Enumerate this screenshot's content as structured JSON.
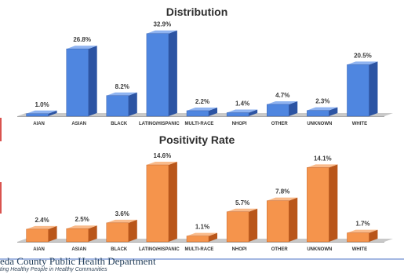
{
  "footer": {
    "department": "eda County Public Health Department",
    "tagline": "ting Healthy People in Healthy Communities"
  },
  "colors": {
    "distribution_front": "#4f86e0",
    "distribution_side": "#2c54a3",
    "distribution_top": "#8fb3f0",
    "positivity_front": "#f5944c",
    "positivity_side": "#b9561a",
    "positivity_top": "#f9bb8c",
    "floor": "#c9c9c9",
    "page_rule": "#4a72c4"
  },
  "chart_data": [
    {
      "type": "bar",
      "title": "Distribution",
      "categories": [
        "AIAN",
        "ASIAN",
        "BLACK",
        "LATINO/HISPANIC",
        "MULTI-RACE",
        "NHOPI",
        "OTHER",
        "UNKNOWN",
        "WHITE"
      ],
      "values": [
        1.0,
        26.8,
        8.2,
        32.9,
        2.2,
        1.4,
        4.7,
        2.3,
        20.5
      ],
      "value_labels": [
        "1.0%",
        "26.8%",
        "8.2%",
        "32.9%",
        "2.2%",
        "1.4%",
        "4.7%",
        "2.3%",
        "20.5%"
      ],
      "ylim": [
        0,
        35
      ],
      "grid": false,
      "style": "3d-bar"
    },
    {
      "type": "bar",
      "title": "Positivity Rate",
      "categories": [
        "AIAN",
        "ASIAN",
        "BLACK",
        "LATINO/HISPANIC",
        "MULTI-RACE",
        "NHOPI",
        "OTHER",
        "UNKNOWN",
        "WHITE"
      ],
      "values": [
        2.4,
        2.5,
        3.6,
        14.6,
        1.1,
        5.7,
        7.8,
        14.1,
        1.7
      ],
      "value_labels": [
        "2.4%",
        "2.5%",
        "3.6%",
        "14.6%",
        "1.1%",
        "5.7%",
        "7.8%",
        "14.1%",
        "1.7%"
      ],
      "ylim": [
        0,
        15.5
      ],
      "grid": false,
      "style": "3d-bar"
    }
  ]
}
